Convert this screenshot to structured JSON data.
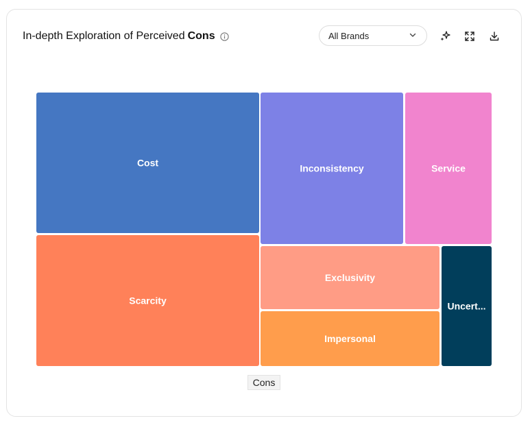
{
  "header": {
    "title_prefix": "In-depth Exploration of Perceived",
    "title_bold": "Cons",
    "info_icon": "info-icon"
  },
  "filter": {
    "selected": "All Brands",
    "icon": "chevron-down-icon"
  },
  "toolbar": {
    "icons": [
      "sparkle-icon",
      "expand-icon",
      "download-icon"
    ]
  },
  "chart_data": {
    "type": "treemap",
    "series_label": "Cons",
    "items": [
      {
        "name": "Cost",
        "label": "Cost",
        "color": "#4577C2"
      },
      {
        "name": "Scarcity",
        "label": "Scarcity",
        "color": "#FF8159"
      },
      {
        "name": "Inconsistency",
        "label": "Inconsistency",
        "color": "#7D81E6"
      },
      {
        "name": "Service",
        "label": "Service",
        "color": "#F184CE"
      },
      {
        "name": "Exclusivity",
        "label": "Exclusivity",
        "color": "#FF9C85"
      },
      {
        "name": "Impersonal",
        "label": "Impersonal",
        "color": "#FF9D4C"
      },
      {
        "name": "Uncertainty",
        "label": "Uncert...",
        "color": "#013E5B"
      }
    ]
  }
}
